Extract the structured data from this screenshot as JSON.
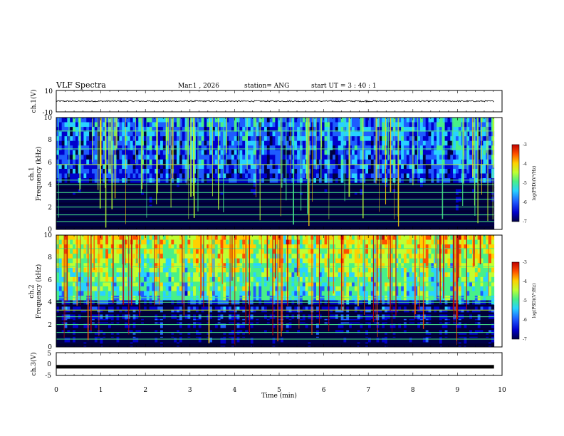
{
  "header": {
    "title": "VLF Spectra",
    "date": "Mar.1  , 2026",
    "station": "station= ANG",
    "start": "start  UT  =   3  : 40 : 1"
  },
  "colors": {
    "trace": "#000000",
    "colormap": [
      "#000044",
      "#0000cc",
      "#1e5cff",
      "#28d2ff",
      "#48f088",
      "#c0ff30",
      "#ffd000",
      "#ff5000",
      "#c00000"
    ]
  },
  "chart_data": [
    {
      "type": "line",
      "name": "ch1-waveform",
      "ylabel": "ch.1(V)",
      "ylim": [
        -10,
        10
      ],
      "yticks": [
        "10",
        "-10"
      ],
      "level": 0,
      "noise_amplitude": 0.6,
      "spike_at_min": 6.95
    },
    {
      "type": "heatmap",
      "name": "ch1-spectrogram",
      "ylabel_line1": "ch.1",
      "ylabel_line2": "Frequency (kHz)",
      "ylim": [
        0,
        10
      ],
      "yticks": [
        "0",
        "2",
        "4",
        "6",
        "8",
        "10"
      ],
      "zlim": [
        -7,
        -3
      ],
      "colorbar_ticks": [
        "-3",
        "-4",
        "-5",
        "-6",
        "-7"
      ],
      "colorbar_label": "log(PSD)(V²/Hz)",
      "intensity": 0.3
    },
    {
      "type": "heatmap",
      "name": "ch2-spectrogram",
      "ylabel_line1": "ch.2",
      "ylabel_line2": "Frequency (kHz)",
      "ylim": [
        0,
        10
      ],
      "yticks": [
        "0",
        "2",
        "4",
        "6",
        "8",
        "10"
      ],
      "zlim": [
        -7,
        -3
      ],
      "colorbar_ticks": [
        "-3",
        "-4",
        "-5",
        "-6",
        "-7"
      ],
      "colorbar_label": "log(PSD)(V²/Hz)",
      "intensity": 0.62
    },
    {
      "type": "line",
      "name": "ch3-waveform",
      "ylabel": "ch.3(V)",
      "ylim": [
        -5,
        5
      ],
      "yticks": [
        "5",
        "0",
        "-5"
      ],
      "level": -1.2
    }
  ],
  "xaxis": {
    "label": "Time (min)",
    "xlim": [
      0,
      10
    ],
    "ticks": [
      "0",
      "1",
      "2",
      "3",
      "4",
      "5",
      "6",
      "7",
      "8",
      "9",
      "10"
    ],
    "data_end_min": 9.82
  }
}
